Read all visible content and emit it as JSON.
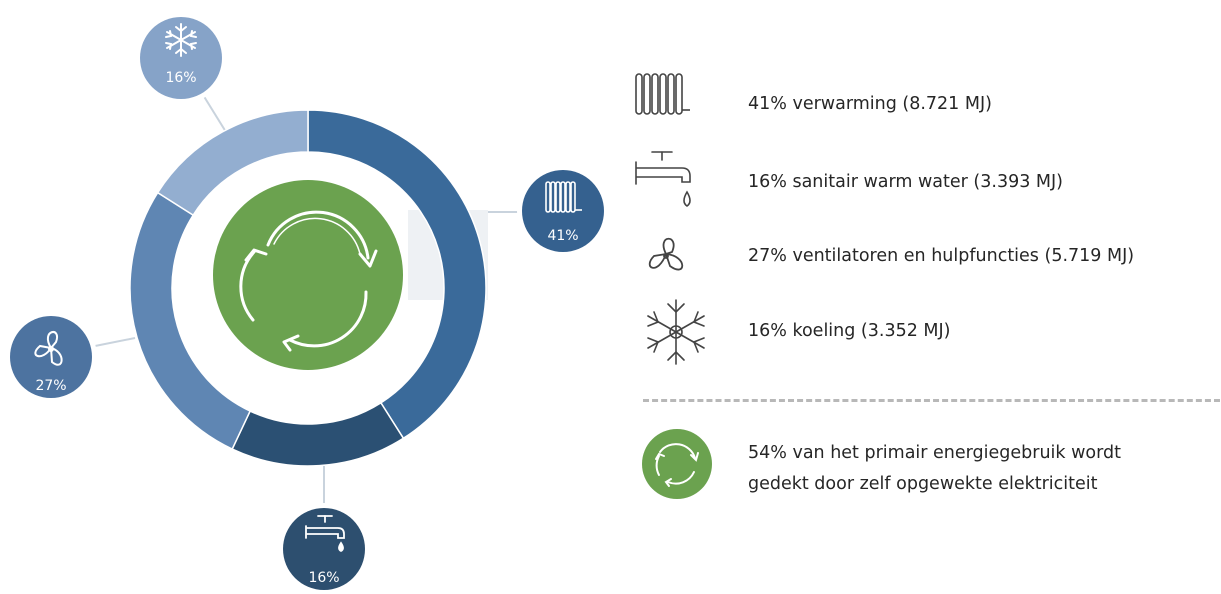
{
  "chart_data": {
    "type": "donut",
    "slices": [
      {
        "key": "verwarming",
        "value": 41,
        "color": "#3a6a9a",
        "icon": "radiator-icon",
        "badge_label": "41%",
        "badge_color": "#35618f"
      },
      {
        "key": "sanitair",
        "value": 16,
        "color": "#2b5073",
        "icon": "faucet-icon",
        "badge_label": "16%",
        "badge_color": "#2d4f6f"
      },
      {
        "key": "ventilatoren",
        "value": 27,
        "color": "#5f86b3",
        "icon": "fan-icon",
        "badge_label": "27%",
        "badge_color": "#4d73a0"
      },
      {
        "key": "koeling",
        "value": 16,
        "color": "#93aed0",
        "icon": "snowflake-icon",
        "badge_label": "16%",
        "badge_color": "#86a3c8"
      }
    ],
    "center_icon": "recycle-arrows-icon",
    "center_color": "#6ba24f"
  },
  "legend": [
    {
      "icon": "radiator-icon",
      "text": "41% verwarming (8.721 MJ)"
    },
    {
      "icon": "faucet-icon",
      "text": "16% sanitair warm water (3.393 MJ)"
    },
    {
      "icon": "fan-icon",
      "text": "27% ventilatoren en hulpfuncties (5.719 MJ)"
    },
    {
      "icon": "snowflake-icon",
      "text": "16% koeling (3.352 MJ)"
    }
  ],
  "note": {
    "icon": "recycle-arrows-icon",
    "line1": "54% van het primair energiegebruik wordt",
    "line2": "gedekt door zelf opgewekte elektriciteit"
  }
}
